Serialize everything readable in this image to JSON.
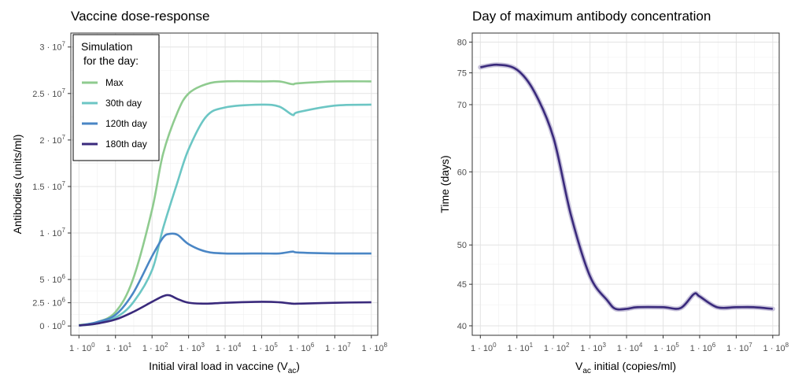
{
  "chart_data": [
    {
      "type": "line",
      "title": "Vaccine dose-response",
      "xlabel_main": "Initial viral load in vaccine (V",
      "xlabel_sub": "ac",
      "xlabel_end": ")",
      "ylabel": "Antibodies (units/ml)",
      "x_scale": "log10",
      "xlim": [
        0.6,
        150000000
      ],
      "ylim": [
        -1000000,
        31500000
      ],
      "x_ticks": [
        {
          "v": 1,
          "base": "1 · 10",
          "exp": "0"
        },
        {
          "v": 10,
          "base": "1 · 10",
          "exp": "1"
        },
        {
          "v": 100,
          "base": "1 · 10",
          "exp": "2"
        },
        {
          "v": 1000,
          "base": "1 · 10",
          "exp": "3"
        },
        {
          "v": 10000,
          "base": "1 · 10",
          "exp": "4"
        },
        {
          "v": 100000,
          "base": "1 · 10",
          "exp": "5"
        },
        {
          "v": 1000000,
          "base": "1 · 10",
          "exp": "6"
        },
        {
          "v": 10000000,
          "base": "1 · 10",
          "exp": "7"
        },
        {
          "v": 100000000,
          "base": "1 · 10",
          "exp": "8"
        }
      ],
      "y_ticks": [
        {
          "v": 0,
          "base": "0 · 10",
          "exp": "0"
        },
        {
          "v": 2500000,
          "base": "2.5 · 10",
          "exp": "6"
        },
        {
          "v": 5000000,
          "base": "5 · 10",
          "exp": "6"
        },
        {
          "v": 10000000,
          "base": "1 · 10",
          "exp": "7"
        },
        {
          "v": 15000000,
          "base": "1.5 · 10",
          "exp": "7"
        },
        {
          "v": 20000000,
          "base": "2 · 10",
          "exp": "7"
        },
        {
          "v": 25000000,
          "base": "2.5 · 10",
          "exp": "7"
        },
        {
          "v": 30000000,
          "base": "3 · 10",
          "exp": "7"
        }
      ],
      "legend": {
        "title_line1": "Simulation",
        "title_line2": "for the day:",
        "position": "top-left"
      },
      "series": [
        {
          "name": "Max",
          "color": "#8fcb8f",
          "x": [
            1,
            3,
            10,
            30,
            100,
            200,
            500,
            1000,
            3000,
            10000,
            100000,
            300000,
            700000,
            1000000,
            10000000,
            100000000
          ],
          "y": [
            100000,
            400000,
            1500000,
            5000000,
            12500000,
            18500000,
            23000000,
            25000000,
            26000000,
            26300000,
            26300000,
            26300000,
            26000000,
            26100000,
            26300000,
            26300000
          ]
        },
        {
          "name": "30th day",
          "color": "#6cc6c4",
          "x": [
            1,
            3,
            10,
            30,
            100,
            200,
            500,
            1000,
            3000,
            10000,
            100000,
            300000,
            700000,
            1000000,
            10000000,
            100000000
          ],
          "y": [
            50000,
            250000,
            900000,
            2500000,
            6000000,
            10500000,
            15500000,
            19000000,
            22500000,
            23500000,
            23800000,
            23600000,
            22700000,
            23000000,
            23700000,
            23800000
          ]
        },
        {
          "name": "120th day",
          "color": "#4a86c5",
          "x": [
            1,
            3,
            10,
            30,
            100,
            200,
            300,
            500,
            1000,
            3000,
            10000,
            100000,
            300000,
            700000,
            1000000,
            10000000,
            100000000
          ],
          "y": [
            50000,
            400000,
            1200000,
            3500000,
            7500000,
            9500000,
            9900000,
            9800000,
            8800000,
            8000000,
            7800000,
            7800000,
            7800000,
            8000000,
            7900000,
            7800000,
            7800000
          ]
        },
        {
          "name": "180th day",
          "color": "#3a2a7c",
          "x": [
            1,
            3,
            10,
            30,
            100,
            200,
            300,
            500,
            1000,
            3000,
            10000,
            100000,
            300000,
            700000,
            1000000,
            10000000,
            100000000
          ],
          "y": [
            50000,
            250000,
            700000,
            1500000,
            2600000,
            3200000,
            3300000,
            2900000,
            2500000,
            2400000,
            2500000,
            2600000,
            2550000,
            2400000,
            2400000,
            2500000,
            2550000
          ]
        }
      ]
    },
    {
      "type": "line",
      "title": "Day of maximum antibody concentration",
      "xlabel_sub": "ac",
      "xlabel_main": "V",
      "xlabel_end": " initial (copies/ml)",
      "ylabel": "Time (days)",
      "x_scale": "log10",
      "xlim": [
        0.6,
        150000000
      ],
      "y_scale": "sqrt",
      "ylim": [
        38.9,
        81.5
      ],
      "x_ticks": [
        {
          "v": 1,
          "base": "1 · 10",
          "exp": "0"
        },
        {
          "v": 10,
          "base": "1 · 10",
          "exp": "1"
        },
        {
          "v": 100,
          "base": "1 · 10",
          "exp": "2"
        },
        {
          "v": 1000,
          "base": "1 · 10",
          "exp": "3"
        },
        {
          "v": 10000,
          "base": "1 · 10",
          "exp": "4"
        },
        {
          "v": 100000,
          "base": "1 · 10",
          "exp": "5"
        },
        {
          "v": 1000000,
          "base": "1 · 10",
          "exp": "6"
        },
        {
          "v": 10000000,
          "base": "1 · 10",
          "exp": "7"
        },
        {
          "v": 100000000,
          "base": "1 · 10",
          "exp": "8"
        }
      ],
      "y_ticks": [
        {
          "v": 40,
          "label": "40"
        },
        {
          "v": 45,
          "label": "45"
        },
        {
          "v": 50,
          "label": "50"
        },
        {
          "v": 60,
          "label": "60"
        },
        {
          "v": 70,
          "label": "70"
        },
        {
          "v": 75,
          "label": "75"
        },
        {
          "v": 80,
          "label": "80"
        }
      ],
      "series": [
        {
          "color": "#3a2a7c",
          "x": [
            1,
            3,
            10,
            30,
            100,
            300,
            1000,
            3000,
            5000,
            10000,
            20000,
            100000,
            300000,
            700000,
            1000000,
            3000000,
            10000000,
            30000000,
            100000000
          ],
          "y": [
            75.9,
            76.3,
            75.5,
            72.0,
            65.0,
            54.0,
            46.0,
            43.0,
            42.0,
            42.0,
            42.2,
            42.2,
            42.1,
            43.8,
            43.5,
            42.2,
            42.2,
            42.2,
            42.0
          ]
        }
      ]
    }
  ]
}
